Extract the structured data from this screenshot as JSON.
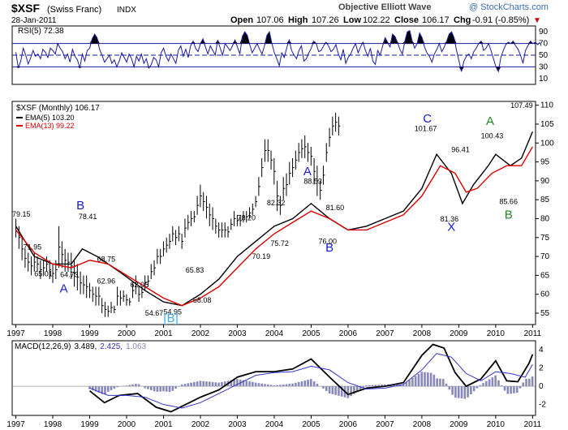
{
  "header": {
    "symbol": "$XSF",
    "name": "(Swiss Franc)",
    "exchange": "INDX",
    "date": "28-Jan-2011",
    "provider": "Objective Elliott Wave",
    "brand": "@ StockCharts.com",
    "open_label": "Open",
    "open": "107.06",
    "high_label": "High",
    "high": "107.26",
    "low_label": "Low",
    "low": "102.22",
    "close_label": "Close",
    "close": "106.17",
    "chg_label": "Chg",
    "chg": "-0.91 (-0.85%)",
    "chg_marker": "▼",
    "down_color": "#cc0000"
  },
  "chart_data": [
    {
      "type": "line",
      "panel": "rsi",
      "title": "RSI(5) 72.38",
      "ylim": [
        0,
        100
      ],
      "levels": [
        70,
        50,
        30
      ],
      "yticks": [
        90,
        70,
        50,
        30,
        10
      ],
      "overbought": 70,
      "oversold": 30,
      "color": "#1a1aa0",
      "fill_color": "#000000",
      "values": [
        55,
        28,
        40,
        62,
        50,
        35,
        45,
        58,
        48,
        52,
        44,
        60,
        55,
        46,
        62,
        58,
        52,
        70,
        62,
        56,
        44,
        52,
        38,
        60,
        48,
        42,
        28,
        52,
        40,
        58,
        62,
        78,
        86,
        80,
        60,
        50,
        38,
        44,
        50,
        36,
        42,
        30,
        40,
        54,
        46,
        38,
        52,
        44,
        30,
        48,
        40,
        52,
        36,
        44,
        28,
        34,
        46,
        42,
        30,
        54,
        62,
        48,
        40,
        52,
        44,
        36,
        58,
        66,
        48,
        60,
        46,
        66,
        74,
        62,
        56,
        70,
        78,
        64,
        52,
        66,
        58,
        50,
        76,
        62,
        50,
        70,
        64,
        58,
        66,
        76,
        64,
        52,
        82,
        90,
        84,
        68,
        54,
        62,
        70,
        60,
        52,
        66,
        84,
        90,
        70,
        54,
        44,
        32,
        54,
        46,
        62,
        76,
        58,
        50,
        44,
        58,
        66,
        40,
        44,
        54,
        62,
        74,
        70,
        56,
        58,
        66,
        72,
        66,
        56,
        60,
        68,
        52,
        42,
        60,
        36,
        46,
        52,
        62,
        70,
        54,
        64,
        72,
        58,
        48,
        62,
        40,
        34,
        58,
        50,
        66,
        80,
        72,
        64,
        86,
        82,
        72,
        60,
        52,
        74,
        90,
        92,
        74,
        62,
        70,
        88,
        80,
        64,
        54,
        48,
        38,
        52,
        60,
        70,
        56,
        64,
        74,
        86,
        90,
        80,
        58,
        40,
        22,
        40,
        48,
        52,
        44,
        56,
        62,
        70,
        74,
        58,
        62,
        70,
        58,
        44,
        30,
        22,
        46,
        58,
        68,
        72,
        70,
        74,
        66,
        60,
        50,
        36,
        58,
        66,
        74,
        70,
        72,
        68,
        72
      ],
      "x_start": 1997.0,
      "x_step": 0.0667
    },
    {
      "type": "line",
      "panel": "price",
      "title": "$XSF (Monthly) 106.17",
      "xlabel": "",
      "ylabel": "",
      "ylim": [
        52,
        111
      ],
      "yticks": [
        55,
        60,
        65,
        70,
        75,
        80,
        85,
        90,
        95,
        100,
        105,
        110
      ],
      "xlim": [
        1996.9,
        2011.08
      ],
      "year_ticks": [
        1997,
        1998,
        1999,
        2000,
        2001,
        2002,
        2003,
        2004,
        2005,
        2006,
        2007,
        2008,
        2009,
        2010,
        2011
      ],
      "bar_color": "#000000",
      "series": [
        {
          "name": "EMA(5) 103.20",
          "color": "#000000",
          "x": [
            1997.0,
            1997.5,
            1998.0,
            1998.5,
            1998.8,
            1999.2,
            1999.8,
            2000.5,
            2001.0,
            2001.5,
            2002.0,
            2002.5,
            2003.0,
            2003.5,
            2004.0,
            2004.5,
            2005.0,
            2005.5,
            2006.0,
            2006.5,
            2007.0,
            2007.5,
            2008.0,
            2008.4,
            2008.8,
            2009.1,
            2009.4,
            2009.8,
            2010.0,
            2010.4,
            2010.7,
            2011.0
          ],
          "values": [
            78,
            70,
            68,
            68,
            72,
            70,
            66,
            61,
            58,
            57,
            60,
            64,
            70,
            74,
            78,
            80,
            84,
            80,
            77,
            78,
            80,
            82,
            88,
            97,
            92,
            84,
            89,
            94,
            97,
            94,
            96,
            103
          ]
        },
        {
          "name": "EMA(13) 99.22",
          "color": "#dd0000",
          "x": [
            1997.0,
            1997.5,
            1998.0,
            1998.5,
            1999.0,
            1999.5,
            2000.0,
            2000.5,
            2001.0,
            2001.5,
            2002.0,
            2002.5,
            2003.0,
            2003.5,
            2004.0,
            2004.5,
            2005.0,
            2005.5,
            2006.0,
            2006.5,
            2007.0,
            2007.5,
            2008.0,
            2008.5,
            2008.9,
            2009.2,
            2009.5,
            2009.9,
            2010.3,
            2010.7,
            2011.0
          ],
          "values": [
            77,
            71,
            68,
            67,
            69,
            68,
            65,
            62,
            59,
            57,
            59,
            62,
            67,
            72,
            76,
            79,
            82,
            80,
            77,
            77,
            79,
            81,
            86,
            94,
            92,
            87,
            88,
            92,
            94,
            94,
            99
          ]
        }
      ],
      "ohlc": {
        "x_start": 1997.0,
        "x_step": 0.0833,
        "highs": [
          80,
          78,
          75,
          72,
          71,
          70,
          71,
          70,
          69,
          69,
          70,
          69,
          68,
          69,
          78,
          74,
          72,
          71,
          71,
          69,
          68,
          66,
          65,
          65,
          63,
          62,
          62,
          62,
          59,
          58,
          57,
          58,
          57,
          62,
          61,
          61,
          60,
          59,
          63,
          65,
          62,
          62,
          65,
          65,
          68,
          69,
          72,
          72,
          74,
          75,
          76,
          78,
          77,
          78,
          76,
          80,
          81,
          82,
          82,
          86,
          89,
          87,
          86,
          84,
          83,
          80,
          79,
          79,
          79,
          78,
          80,
          82,
          81,
          81,
          82,
          82,
          83,
          84,
          86,
          91,
          96,
          101,
          101,
          98,
          96,
          90,
          86,
          91,
          92,
          95,
          96,
          98,
          100,
          101,
          102,
          100,
          99,
          96,
          94,
          90,
          94,
          100,
          104,
          107,
          108,
          107
        ],
        "lows": [
          75,
          72,
          69,
          67,
          66,
          65,
          66,
          66,
          64,
          65,
          66,
          64,
          63,
          64,
          67,
          67,
          66,
          66,
          64,
          62,
          61,
          60,
          60,
          59,
          59,
          58,
          57,
          57,
          55,
          54,
          54,
          55,
          55,
          57,
          57,
          58,
          57,
          57,
          59,
          60,
          58,
          59,
          61,
          62,
          64,
          65,
          68,
          68,
          70,
          71,
          72,
          74,
          73,
          74,
          72,
          75,
          77,
          78,
          79,
          81,
          83,
          82,
          80,
          78,
          77,
          76,
          75,
          75,
          75,
          75,
          77,
          78,
          78,
          78,
          79,
          79,
          80,
          81,
          83,
          86,
          91,
          95,
          95,
          93,
          89,
          82,
          81,
          85,
          86,
          89,
          91,
          93,
          95,
          96,
          96,
          95,
          94,
          89,
          86,
          85,
          89,
          95,
          99,
          102,
          103,
          102
        ]
      },
      "labels": [
        {
          "text": "79.15",
          "x": 1996.9,
          "y": 80.5
        },
        {
          "text": "71.95",
          "x": 1997.2,
          "y": 71.8
        },
        {
          "text": "65.01",
          "x": 1997.5,
          "y": 64.8
        },
        {
          "text": "64.73",
          "x": 1998.2,
          "y": 64.5
        },
        {
          "text": "78.41",
          "x": 1998.7,
          "y": 79.9
        },
        {
          "text": "68.75",
          "x": 1999.2,
          "y": 68.6
        },
        {
          "text": "62.96",
          "x": 1999.2,
          "y": 62.8
        },
        {
          "text": "62.05",
          "x": 2000.1,
          "y": 61.9
        },
        {
          "text": "54.67",
          "x": 2000.5,
          "y": 54.4
        },
        {
          "text": "54.95",
          "x": 2001.0,
          "y": 54.7
        },
        {
          "text": "65.83",
          "x": 2001.6,
          "y": 65.7
        },
        {
          "text": "58.08",
          "x": 2001.8,
          "y": 57.8
        },
        {
          "text": "78.20",
          "x": 2003.0,
          "y": 79.6
        },
        {
          "text": "70.19",
          "x": 2003.4,
          "y": 69.4
        },
        {
          "text": "82.32",
          "x": 2003.8,
          "y": 83.5
        },
        {
          "text": "75.72",
          "x": 2003.9,
          "y": 72.8
        },
        {
          "text": "88.53",
          "x": 2004.8,
          "y": 89.2
        },
        {
          "text": "81.60",
          "x": 2005.4,
          "y": 82.3
        },
        {
          "text": "76.00",
          "x": 2005.2,
          "y": 73.4
        },
        {
          "text": "101.67",
          "x": 2007.8,
          "y": 103.2
        },
        {
          "text": "96.41",
          "x": 2008.8,
          "y": 97.6
        },
        {
          "text": "81.36",
          "x": 2008.5,
          "y": 79.3
        },
        {
          "text": "100.43",
          "x": 2009.6,
          "y": 101.2
        },
        {
          "text": "85.66",
          "x": 2010.1,
          "y": 83.9
        },
        {
          "text": "107.49",
          "x": 2010.4,
          "y": 109.3
        }
      ],
      "waves": [
        {
          "text": "A",
          "x": 1998.3,
          "y": 60.5,
          "color": "#1a1acc"
        },
        {
          "text": "B",
          "x": 1998.75,
          "y": 82.5,
          "color": "#1a1acc"
        },
        {
          "text": "[B]",
          "x": 2001.2,
          "y": 52.6,
          "color": "#44aaee"
        },
        {
          "text": "A",
          "x": 2004.9,
          "y": 91.5,
          "color": "#1a1acc"
        },
        {
          "text": "B",
          "x": 2005.5,
          "y": 71.3,
          "color": "#1a1acc"
        },
        {
          "text": "C",
          "x": 2008.15,
          "y": 105.4,
          "color": "#1a1acc"
        },
        {
          "text": "X",
          "x": 2008.8,
          "y": 76.8,
          "color": "#1a1acc"
        },
        {
          "text": "A",
          "x": 2009.85,
          "y": 104.8,
          "color": "#228822"
        },
        {
          "text": "B",
          "x": 2010.35,
          "y": 80.0,
          "color": "#228822"
        }
      ]
    },
    {
      "type": "line",
      "panel": "macd",
      "title": "MACD(12,26,9) 3.489, 2.425, 1.063",
      "title_parts": [
        "MACD(12,26,9)",
        "3.489,",
        "2.425,",
        "1.063"
      ],
      "ylim": [
        -3.2,
        5
      ],
      "yticks": [
        4,
        2,
        0,
        -2
      ],
      "histogram_color": "#8888bb",
      "series": [
        {
          "name": "MACD",
          "color": "#000000",
          "x": [
            1999.0,
            1999.4,
            1999.8,
            2000.3,
            2000.8,
            2001.2,
            2001.6,
            2002.0,
            2002.5,
            2003.0,
            2003.5,
            2004.0,
            2004.5,
            2005.0,
            2005.5,
            2006.0,
            2006.5,
            2007.0,
            2007.5,
            2008.0,
            2008.3,
            2008.6,
            2008.9,
            2009.2,
            2009.6,
            2010.0,
            2010.3,
            2010.6,
            2010.9,
            2011.0
          ],
          "values": [
            -0.5,
            -1.8,
            -1.0,
            -0.8,
            -2.3,
            -2.8,
            -2.0,
            -1.2,
            -0.4,
            1.0,
            1.6,
            1.6,
            1.9,
            3.0,
            1.0,
            -0.9,
            -0.2,
            0.0,
            0.4,
            3.4,
            4.6,
            4.2,
            1.5,
            0.0,
            0.8,
            2.8,
            0.6,
            0.5,
            2.5,
            3.5
          ]
        },
        {
          "name": "Signal",
          "color": "#3333cc",
          "x": [
            1999.0,
            1999.5,
            2000.0,
            2000.5,
            2001.0,
            2001.5,
            2002.0,
            2002.5,
            2003.0,
            2003.5,
            2004.0,
            2004.5,
            2005.0,
            2005.5,
            2006.0,
            2006.5,
            2007.0,
            2007.5,
            2008.0,
            2008.4,
            2008.8,
            2009.2,
            2009.6,
            2010.0,
            2010.4,
            2010.8,
            2011.0
          ],
          "values": [
            -0.2,
            -1.0,
            -1.0,
            -1.2,
            -2.0,
            -2.4,
            -1.8,
            -0.8,
            0.2,
            1.2,
            1.5,
            1.6,
            2.2,
            1.8,
            0.4,
            -0.3,
            -0.2,
            0.2,
            1.8,
            3.6,
            3.2,
            1.4,
            0.6,
            1.6,
            1.4,
            1.0,
            2.4
          ]
        }
      ]
    }
  ]
}
